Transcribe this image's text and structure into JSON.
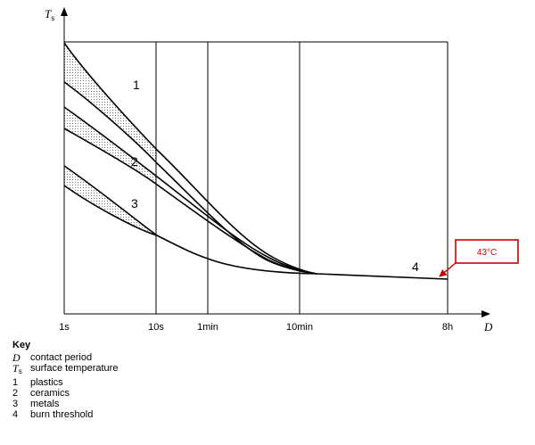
{
  "chart_data": {
    "type": "line",
    "x_axis": {
      "symbol": "D",
      "ticks": [
        "1s",
        "10s",
        "1min",
        "10min",
        "8h"
      ]
    },
    "y_axis": {
      "symbol": "T",
      "subscript": "s"
    },
    "curve_labels": [
      "1",
      "2",
      "3",
      "4"
    ],
    "annotation": {
      "text": "43°C",
      "color": "#cc0000"
    },
    "key": {
      "title": "Key",
      "items": [
        {
          "symbol": "D",
          "subscript": "",
          "text": "contact period"
        },
        {
          "symbol": "T",
          "subscript": "s",
          "text": "surface temperature"
        },
        {
          "symbol": "1",
          "subscript": "",
          "text": "plastics"
        },
        {
          "symbol": "2",
          "subscript": "",
          "text": "ceramics"
        },
        {
          "symbol": "3",
          "subscript": "",
          "text": "metals"
        },
        {
          "symbol": "4",
          "subscript": "",
          "text": "burn threshold"
        }
      ]
    }
  }
}
